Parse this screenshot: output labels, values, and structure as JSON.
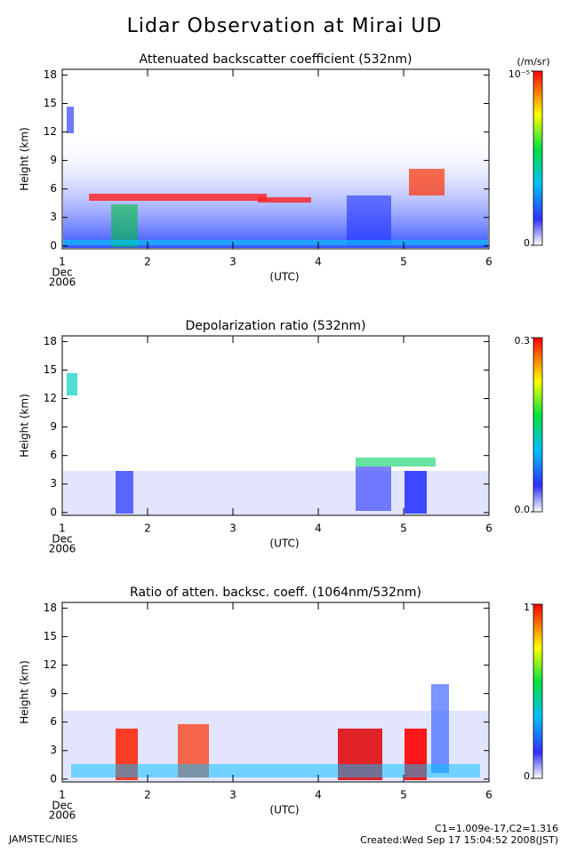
{
  "title": "Lidar Observation at Mirai UD",
  "chart_data": [
    {
      "type": "heatmap",
      "title": "Attenuated backscatter coefficient (532nm)",
      "ylabel": "Height (km)",
      "xlabel": "(UTC)",
      "month": "Dec",
      "year": "2006",
      "xlim": [
        1,
        6
      ],
      "xticks": [
        1,
        2,
        3,
        4,
        5,
        6
      ],
      "ylim": [
        -0.3,
        18.6
      ],
      "yticks": [
        0,
        3,
        6,
        9,
        12,
        15,
        18
      ],
      "colorbar": {
        "label": "(/m/sr)",
        "ticks": [
          {
            "value": 0,
            "label": "0"
          },
          {
            "value": 1e-05,
            "label": "10⁻⁵"
          }
        ]
      }
    },
    {
      "type": "heatmap",
      "title": "Depolarization ratio (532nm)",
      "ylabel": "Height (km)",
      "xlabel": "(UTC)",
      "month": "Dec",
      "year": "2006",
      "xlim": [
        1,
        6
      ],
      "xticks": [
        1,
        2,
        3,
        4,
        5,
        6
      ],
      "ylim": [
        -0.3,
        18.6
      ],
      "yticks": [
        0,
        3,
        6,
        9,
        12,
        15,
        18
      ],
      "colorbar": {
        "ticks": [
          {
            "value": 0,
            "label": "0.0"
          },
          0.3
        ]
      }
    },
    {
      "type": "heatmap",
      "title": "Ratio of atten. backsc. coeff. (1064nm/532nm)",
      "ylabel": "Height (km)",
      "xlabel": "(UTC)",
      "month": "Dec",
      "year": "2006",
      "xlim": [
        1,
        6
      ],
      "xticks": [
        1,
        2,
        3,
        4,
        5,
        6
      ],
      "ylim": [
        -0.3,
        18.6
      ],
      "yticks": [
        0,
        3,
        6,
        9,
        12,
        15,
        18
      ],
      "colorbar": {
        "ticks": [
          0,
          1
        ]
      }
    }
  ],
  "footer": {
    "credit": "JAMSTEC/NIES",
    "constants": "C1=1.009e-17,C2=1.316",
    "created": "Created:Wed Sep 17 15:04:52 2008(JST)"
  }
}
